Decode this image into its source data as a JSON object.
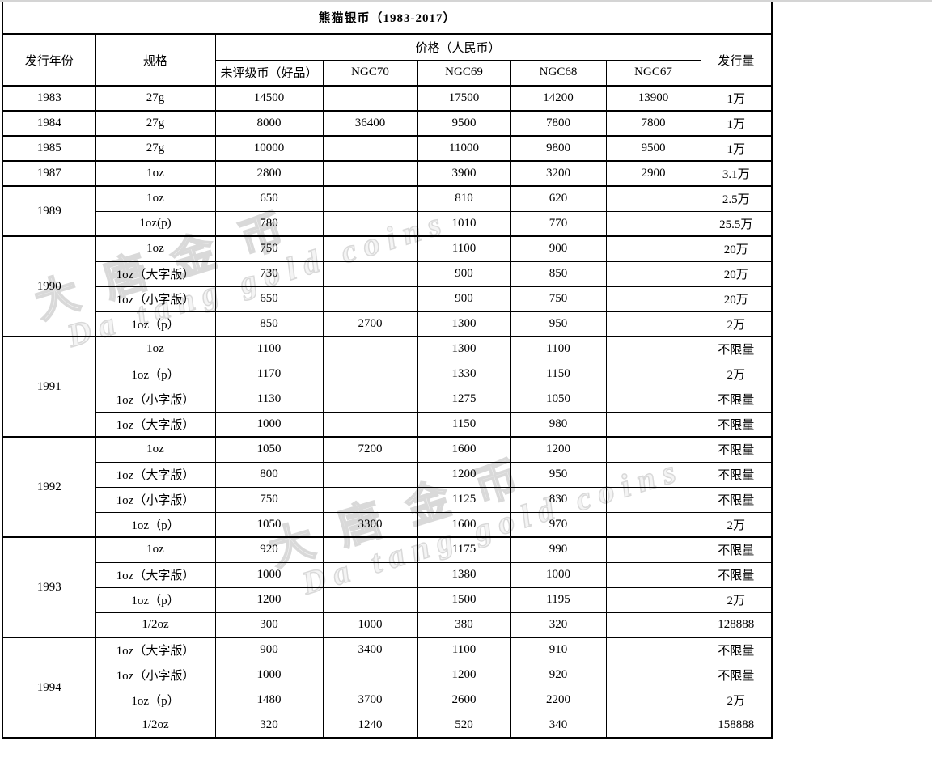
{
  "title": "熊猫银币（1983-2017）",
  "watermark": {
    "cn_text": "大唐金币",
    "en_text": "Da tang gold coins",
    "color": "#d9d9d9"
  },
  "table": {
    "headers": {
      "year": "发行年份",
      "spec": "规格",
      "price_group": "价格（人民币）",
      "price_columns": [
        "未评级币（好品）",
        "NGC70",
        "NGC69",
        "NGC68",
        "NGC67"
      ],
      "mintage": "发行量"
    },
    "groups": [
      {
        "year": "1983",
        "rows": [
          {
            "spec": "27g",
            "ungraded": "14500",
            "ngc70": "",
            "ngc69": "17500",
            "ngc68": "14200",
            "ngc67": "13900",
            "mintage": "1万"
          }
        ]
      },
      {
        "year": "1984",
        "rows": [
          {
            "spec": "27g",
            "ungraded": "8000",
            "ngc70": "36400",
            "ngc69": "9500",
            "ngc68": "7800",
            "ngc67": "7800",
            "mintage": "1万"
          }
        ]
      },
      {
        "year": "1985",
        "rows": [
          {
            "spec": "27g",
            "ungraded": "10000",
            "ngc70": "",
            "ngc69": "11000",
            "ngc68": "9800",
            "ngc67": "9500",
            "mintage": "1万"
          }
        ]
      },
      {
        "year": "1987",
        "rows": [
          {
            "spec": "1oz",
            "ungraded": "2800",
            "ngc70": "",
            "ngc69": "3900",
            "ngc68": "3200",
            "ngc67": "2900",
            "mintage": "3.1万"
          }
        ]
      },
      {
        "year": "1989",
        "rows": [
          {
            "spec": "1oz",
            "ungraded": "650",
            "ngc70": "",
            "ngc69": "810",
            "ngc68": "620",
            "ngc67": "",
            "mintage": "2.5万"
          },
          {
            "spec": "1oz(p)",
            "ungraded": "780",
            "ngc70": "",
            "ngc69": "1010",
            "ngc68": "770",
            "ngc67": "",
            "mintage": "25.5万"
          }
        ]
      },
      {
        "year": "1990",
        "rows": [
          {
            "spec": "1oz",
            "ungraded": "750",
            "ngc70": "",
            "ngc69": "1100",
            "ngc68": "900",
            "ngc67": "",
            "mintage": "20万"
          },
          {
            "spec": "1oz（大字版）",
            "ungraded": "730",
            "ngc70": "",
            "ngc69": "900",
            "ngc68": "850",
            "ngc67": "",
            "mintage": "20万"
          },
          {
            "spec": "1oz（小字版）",
            "ungraded": "650",
            "ngc70": "",
            "ngc69": "900",
            "ngc68": "750",
            "ngc67": "",
            "mintage": "20万"
          },
          {
            "spec": "1oz（p）",
            "ungraded": "850",
            "ngc70": "2700",
            "ngc69": "1300",
            "ngc68": "950",
            "ngc67": "",
            "mintage": "2万"
          }
        ]
      },
      {
        "year": "1991",
        "rows": [
          {
            "spec": "1oz",
            "ungraded": "1100",
            "ngc70": "",
            "ngc69": "1300",
            "ngc68": "1100",
            "ngc67": "",
            "mintage": "不限量"
          },
          {
            "spec": "1oz（p）",
            "ungraded": "1170",
            "ngc70": "",
            "ngc69": "1330",
            "ngc68": "1150",
            "ngc67": "",
            "mintage": "2万"
          },
          {
            "spec": "1oz（小字版）",
            "ungraded": "1130",
            "ngc70": "",
            "ngc69": "1275",
            "ngc68": "1050",
            "ngc67": "",
            "mintage": "不限量"
          },
          {
            "spec": "1oz（大字版）",
            "ungraded": "1000",
            "ngc70": "",
            "ngc69": "1150",
            "ngc68": "980",
            "ngc67": "",
            "mintage": "不限量"
          }
        ]
      },
      {
        "year": "1992",
        "rows": [
          {
            "spec": "1oz",
            "ungraded": "1050",
            "ngc70": "7200",
            "ngc69": "1600",
            "ngc68": "1200",
            "ngc67": "",
            "mintage": "不限量"
          },
          {
            "spec": "1oz（大字版）",
            "ungraded": "800",
            "ngc70": "",
            "ngc69": "1200",
            "ngc68": "950",
            "ngc67": "",
            "mintage": "不限量"
          },
          {
            "spec": "1oz（小字版）",
            "ungraded": "750",
            "ngc70": "",
            "ngc69": "1125",
            "ngc68": "830",
            "ngc67": "",
            "mintage": "不限量"
          },
          {
            "spec": "1oz（p）",
            "ungraded": "1050",
            "ngc70": "3300",
            "ngc69": "1600",
            "ngc68": "970",
            "ngc67": "",
            "mintage": "2万"
          }
        ]
      },
      {
        "year": "1993",
        "rows": [
          {
            "spec": "1oz",
            "ungraded": "920",
            "ngc70": "",
            "ngc69": "1175",
            "ngc68": "990",
            "ngc67": "",
            "mintage": "不限量"
          },
          {
            "spec": "1oz（大字版）",
            "ungraded": "1000",
            "ngc70": "",
            "ngc69": "1380",
            "ngc68": "1000",
            "ngc67": "",
            "mintage": "不限量"
          },
          {
            "spec": "1oz（p）",
            "ungraded": "1200",
            "ngc70": "",
            "ngc69": "1500",
            "ngc68": "1195",
            "ngc67": "",
            "mintage": "2万"
          },
          {
            "spec": "1/2oz",
            "ungraded": "300",
            "ngc70": "1000",
            "ngc69": "380",
            "ngc68": "320",
            "ngc67": "",
            "mintage": "128888"
          }
        ]
      },
      {
        "year": "1994",
        "rows": [
          {
            "spec": "1oz（大字版）",
            "ungraded": "900",
            "ngc70": "3400",
            "ngc69": "1100",
            "ngc68": "910",
            "ngc67": "",
            "mintage": "不限量"
          },
          {
            "spec": "1oz（小字版）",
            "ungraded": "1000",
            "ngc70": "",
            "ngc69": "1200",
            "ngc68": "920",
            "ngc67": "",
            "mintage": "不限量"
          },
          {
            "spec": "1oz（p）",
            "ungraded": "1480",
            "ngc70": "3700",
            "ngc69": "2600",
            "ngc68": "2200",
            "ngc67": "",
            "mintage": "2万"
          },
          {
            "spec": "1/2oz",
            "ungraded": "320",
            "ngc70": "1240",
            "ngc69": "520",
            "ngc68": "340",
            "ngc67": "",
            "mintage": "158888"
          }
        ]
      }
    ]
  },
  "chart_data": {
    "type": "table",
    "title": "熊猫银币（1983-2017）",
    "columns": [
      "发行年份",
      "规格",
      "未评级币（好品）",
      "NGC70",
      "NGC69",
      "NGC68",
      "NGC67",
      "发行量"
    ],
    "rows": [
      [
        "1983",
        "27g",
        "14500",
        "",
        "17500",
        "14200",
        "13900",
        "1万"
      ],
      [
        "1984",
        "27g",
        "8000",
        "36400",
        "9500",
        "7800",
        "7800",
        "1万"
      ],
      [
        "1985",
        "27g",
        "10000",
        "",
        "11000",
        "9800",
        "9500",
        "1万"
      ],
      [
        "1987",
        "1oz",
        "2800",
        "",
        "3900",
        "3200",
        "2900",
        "3.1万"
      ],
      [
        "1989",
        "1oz",
        "650",
        "",
        "810",
        "620",
        "",
        "2.5万"
      ],
      [
        "1989",
        "1oz(p)",
        "780",
        "",
        "1010",
        "770",
        "",
        "25.5万"
      ],
      [
        "1990",
        "1oz",
        "750",
        "",
        "1100",
        "900",
        "",
        "20万"
      ],
      [
        "1990",
        "1oz（大字版）",
        "730",
        "",
        "900",
        "850",
        "",
        "20万"
      ],
      [
        "1990",
        "1oz（小字版）",
        "650",
        "",
        "900",
        "750",
        "",
        "20万"
      ],
      [
        "1990",
        "1oz（p）",
        "850",
        "2700",
        "1300",
        "950",
        "",
        "2万"
      ],
      [
        "1991",
        "1oz",
        "1100",
        "",
        "1300",
        "1100",
        "",
        "不限量"
      ],
      [
        "1991",
        "1oz（p）",
        "1170",
        "",
        "1330",
        "1150",
        "",
        "2万"
      ],
      [
        "1991",
        "1oz（小字版）",
        "1130",
        "",
        "1275",
        "1050",
        "",
        "不限量"
      ],
      [
        "1991",
        "1oz（大字版）",
        "1000",
        "",
        "1150",
        "980",
        "",
        "不限量"
      ],
      [
        "1992",
        "1oz",
        "1050",
        "7200",
        "1600",
        "1200",
        "",
        "不限量"
      ],
      [
        "1992",
        "1oz（大字版）",
        "800",
        "",
        "1200",
        "950",
        "",
        "不限量"
      ],
      [
        "1992",
        "1oz（小字版）",
        "750",
        "",
        "1125",
        "830",
        "",
        "不限量"
      ],
      [
        "1992",
        "1oz（p）",
        "1050",
        "3300",
        "1600",
        "970",
        "",
        "2万"
      ],
      [
        "1993",
        "1oz",
        "920",
        "",
        "1175",
        "990",
        "",
        "不限量"
      ],
      [
        "1993",
        "1oz（大字版）",
        "1000",
        "",
        "1380",
        "1000",
        "",
        "不限量"
      ],
      [
        "1993",
        "1oz（p）",
        "1200",
        "",
        "1500",
        "1195",
        "",
        "2万"
      ],
      [
        "1993",
        "1/2oz",
        "300",
        "1000",
        "380",
        "320",
        "",
        "128888"
      ],
      [
        "1994",
        "1oz（大字版）",
        "900",
        "3400",
        "1100",
        "910",
        "",
        "不限量"
      ],
      [
        "1994",
        "1oz（小字版）",
        "1000",
        "",
        "1200",
        "920",
        "",
        "不限量"
      ],
      [
        "1994",
        "1oz（p）",
        "1480",
        "3700",
        "2600",
        "2200",
        "",
        "2万"
      ],
      [
        "1994",
        "1/2oz",
        "320",
        "1240",
        "520",
        "340",
        "",
        "158888"
      ]
    ]
  }
}
